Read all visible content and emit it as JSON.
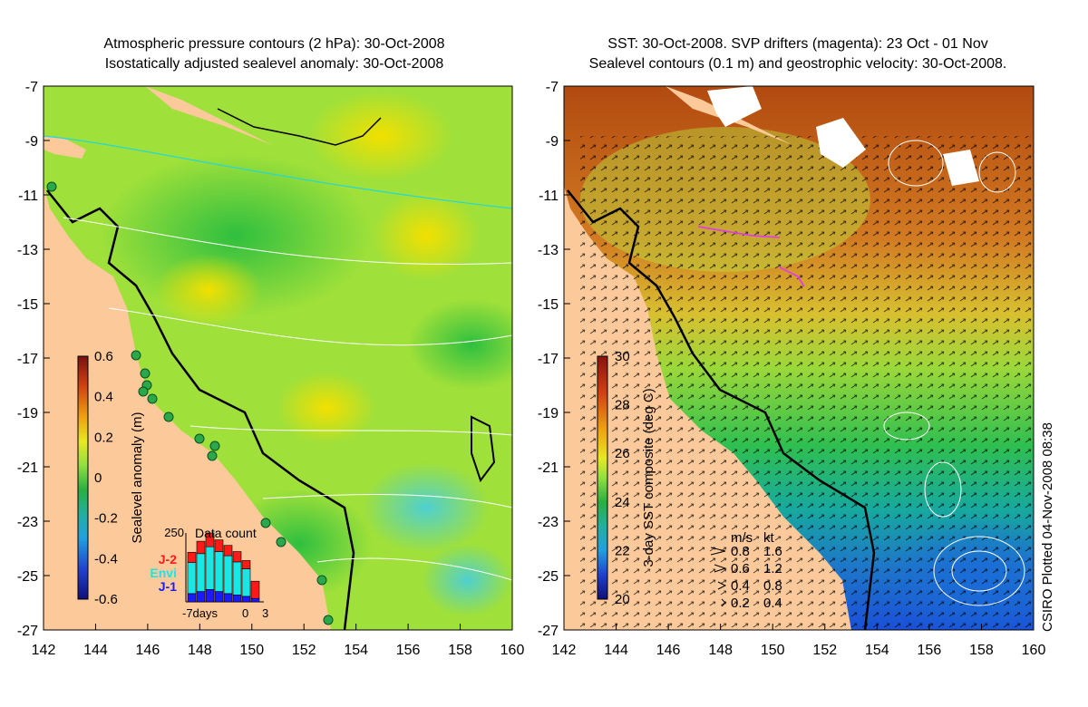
{
  "left_panel": {
    "title_line1": "Atmospheric pressure contours (2 hPa): 30-Oct-2008",
    "title_line2": "Isostatically adjusted sealevel anomaly: 30-Oct-2008",
    "colorbar_label": "Sealevel anomaly (m)",
    "colorbar_ticks": [
      "0.6",
      "0.4",
      "0.2",
      "0",
      "-0.2",
      "-0.4",
      "-0.6"
    ],
    "inset": {
      "title": "Data count",
      "ytick": "250",
      "legend": [
        {
          "label": "J-2",
          "color": "#ff1a1a"
        },
        {
          "label": "Envi",
          "color": "#1ae6e6"
        },
        {
          "label": "J-1",
          "color": "#1a1aff"
        }
      ],
      "x_labels": [
        "-7days",
        "0",
        "3"
      ],
      "bars": [
        {
          "jone": 0.12,
          "envi": 0.45,
          "jtwo": 0.15
        },
        {
          "jone": 0.15,
          "envi": 0.55,
          "jtwo": 0.18
        },
        {
          "jone": 0.18,
          "envi": 0.62,
          "jtwo": 0.2
        },
        {
          "jone": 0.15,
          "envi": 0.58,
          "jtwo": 0.17
        },
        {
          "jone": 0.12,
          "envi": 0.55,
          "jtwo": 0.15
        },
        {
          "jone": 0.1,
          "envi": 0.48,
          "jtwo": 0.15
        },
        {
          "jone": 0.08,
          "envi": 0.4,
          "jtwo": 0.12
        },
        {
          "jone": 0.05,
          "envi": 0.0,
          "jtwo": 0.25
        }
      ]
    }
  },
  "right_panel": {
    "title_line1": "SST: 30-Oct-2008. SVP drifters (magenta): 23 Oct - 01 Nov",
    "title_line2": "Sealevel contours (0.1 m) and geostrophic velocity: 30-Oct-2008.",
    "colorbar_label": "3-day SST composite (deg C)",
    "colorbar_ticks": [
      "30",
      "28",
      "26",
      "24",
      "22",
      "20"
    ],
    "velocity_legend": {
      "header_ms": "m/s",
      "header_kt": "kt",
      "rows": [
        {
          "ms": "0.8",
          "kt": "1.6",
          "len": 0.8
        },
        {
          "ms": "0.6",
          "kt": "1.2",
          "len": 0.6
        },
        {
          "ms": "0.4",
          "kt": "0.8",
          "len": 0.4
        },
        {
          "ms": "0.2",
          "kt": "0.4",
          "len": 0.2
        }
      ]
    }
  },
  "axes": {
    "x_ticks": [
      "142",
      "144",
      "146",
      "148",
      "150",
      "152",
      "154",
      "156",
      "158",
      "160"
    ],
    "y_ticks": [
      "-7",
      "-9",
      "-11",
      "-13",
      "-15",
      "-17",
      "-19",
      "-21",
      "-23",
      "-25",
      "-27"
    ],
    "lon_range": [
      142,
      160
    ],
    "lat_range": [
      -27,
      -7
    ]
  },
  "credit": "CSIRO Plotted 04-Nov-2008 08:38",
  "colors": {
    "land": "#fbc99a",
    "coast": "#000000",
    "contour": "#ffffff",
    "drifter": "#e040e0",
    "pressure_line": "#22d8d8"
  }
}
